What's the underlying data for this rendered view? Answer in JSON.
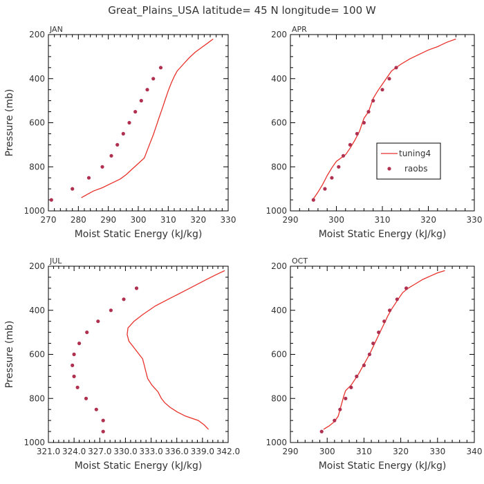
{
  "title": "Great_Plains_USA  latitude= 45 N longitude= 100 W",
  "legend": {
    "entries": [
      "tuning4",
      "raobs"
    ]
  },
  "colors": {
    "model": "#e8302a",
    "obs": "#b03050"
  },
  "chart_data": [
    {
      "type": "line",
      "title": "JAN",
      "xlabel": "Moist Static Energy (kJ/kg)",
      "ylabel": "Pressure (mb)",
      "xlim": [
        270,
        330
      ],
      "ylim": [
        1000,
        200
      ],
      "xticks": [
        270,
        280,
        290,
        300,
        310,
        320,
        330
      ],
      "xtick_labels": [
        "270",
        "280",
        "290",
        "300",
        "310",
        "320",
        "330"
      ],
      "yticks": [
        200,
        400,
        600,
        800,
        1000
      ],
      "ytick_labels": [
        "200",
        "400",
        "600",
        "800",
        "1000"
      ],
      "show_ylabel": true,
      "series": [
        {
          "name": "tuning4",
          "kind": "line",
          "points": [
            [
              281,
              940
            ],
            [
              283,
              925
            ],
            [
              285,
              910
            ],
            [
              288,
              895
            ],
            [
              291,
              875
            ],
            [
              294,
              855
            ],
            [
              296,
              835
            ],
            [
              298,
              810
            ],
            [
              300,
              785
            ],
            [
              302,
              760
            ],
            [
              303,
              725
            ],
            [
              304,
              690
            ],
            [
              305,
              655
            ],
            [
              306,
              615
            ],
            [
              307,
              575
            ],
            [
              308,
              535
            ],
            [
              309,
              495
            ],
            [
              310,
              455
            ],
            [
              311,
              420
            ],
            [
              312,
              390
            ],
            [
              313,
              365
            ],
            [
              315,
              335
            ],
            [
              317,
              305
            ],
            [
              319,
              280
            ],
            [
              321,
              260
            ],
            [
              323,
              240
            ],
            [
              325,
              220
            ]
          ]
        },
        {
          "name": "raobs",
          "kind": "points",
          "points": [
            [
              271,
              950
            ],
            [
              278,
              900
            ],
            [
              283.5,
              850
            ],
            [
              288,
              800
            ],
            [
              291,
              750
            ],
            [
              293,
              700
            ],
            [
              295,
              650
            ],
            [
              297,
              600
            ],
            [
              299,
              550
            ],
            [
              301,
              500
            ],
            [
              303,
              450
            ],
            [
              305,
              400
            ],
            [
              307.5,
              350
            ]
          ]
        }
      ]
    },
    {
      "type": "line",
      "title": "APR",
      "xlabel": "Moist Static Energy (kJ/kg)",
      "ylabel": "",
      "xlim": [
        290,
        330
      ],
      "ylim": [
        1000,
        200
      ],
      "xticks": [
        290,
        300,
        310,
        320,
        330
      ],
      "xtick_labels": [
        "290",
        "300",
        "310",
        "320",
        "330"
      ],
      "yticks": [
        200,
        400,
        600,
        800,
        1000
      ],
      "ytick_labels": [
        "200",
        "400",
        "600",
        "800",
        "1000"
      ],
      "show_ylabel": false,
      "legend_position": "right",
      "series": [
        {
          "name": "tuning4",
          "kind": "line",
          "points": [
            [
              295,
              945
            ],
            [
              296,
              915
            ],
            [
              297,
              880
            ],
            [
              298,
              840
            ],
            [
              299,
              805
            ],
            [
              300,
              775
            ],
            [
              302,
              745
            ],
            [
              303,
              715
            ],
            [
              304,
              680
            ],
            [
              305,
              640
            ],
            [
              305.5,
              610
            ],
            [
              306,
              580
            ],
            [
              307,
              550
            ],
            [
              307.5,
              520
            ],
            [
              308,
              490
            ],
            [
              309,
              455
            ],
            [
              310,
              425
            ],
            [
              311,
              395
            ],
            [
              312,
              365
            ],
            [
              314,
              335
            ],
            [
              316,
              310
            ],
            [
              318,
              290
            ],
            [
              320,
              270
            ],
            [
              322,
              255
            ],
            [
              324,
              235
            ],
            [
              326,
              220
            ]
          ]
        },
        {
          "name": "raobs",
          "kind": "points",
          "points": [
            [
              295,
              950
            ],
            [
              297.5,
              900
            ],
            [
              299,
              850
            ],
            [
              300.5,
              800
            ],
            [
              301.5,
              750
            ],
            [
              303,
              700
            ],
            [
              304.5,
              650
            ],
            [
              306,
              600
            ],
            [
              307,
              550
            ],
            [
              308,
              500
            ],
            [
              310,
              450
            ],
            [
              311.5,
              400
            ],
            [
              313,
              350
            ]
          ]
        }
      ]
    },
    {
      "type": "line",
      "title": "JUL",
      "xlabel": "Moist Static Energy (kJ/kg)",
      "ylabel": "Pressure (mb)",
      "xlim": [
        321.0,
        342.0
      ],
      "ylim": [
        1000,
        200
      ],
      "xticks": [
        321.0,
        324.0,
        327.0,
        330.0,
        333.0,
        336.0,
        339.0,
        342.0
      ],
      "xtick_labels": [
        "321.0",
        "324.0",
        "327.0",
        "330.0",
        "333.0",
        "336.0",
        "339.0",
        "342.0"
      ],
      "yticks": [
        200,
        400,
        600,
        800,
        1000
      ],
      "ytick_labels": [
        "200",
        "400",
        "600",
        "800",
        "1000"
      ],
      "show_ylabel": true,
      "series": [
        {
          "name": "tuning4",
          "kind": "line",
          "points": [
            [
              339.7,
              940
            ],
            [
              339.2,
              920
            ],
            [
              338.5,
              900
            ],
            [
              337.0,
              880
            ],
            [
              336.0,
              860
            ],
            [
              335.2,
              840
            ],
            [
              334.6,
              820
            ],
            [
              334.2,
              800
            ],
            [
              333.8,
              770
            ],
            [
              333.1,
              740
            ],
            [
              332.6,
              710
            ],
            [
              332.4,
              680
            ],
            [
              332.2,
              650
            ],
            [
              332.0,
              620
            ],
            [
              331.6,
              600
            ],
            [
              331.0,
              570
            ],
            [
              330.4,
              540
            ],
            [
              330.2,
              510
            ],
            [
              330.3,
              480
            ],
            [
              331.0,
              450
            ],
            [
              332.0,
              420
            ],
            [
              333.5,
              380
            ],
            [
              335.0,
              350
            ],
            [
              336.5,
              320
            ],
            [
              338.0,
              290
            ],
            [
              339.5,
              260
            ],
            [
              340.5,
              240
            ],
            [
              341.6,
              220
            ]
          ]
        },
        {
          "name": "raobs",
          "kind": "points",
          "points": [
            [
              327.4,
              950
            ],
            [
              327.4,
              900
            ],
            [
              326.6,
              850
            ],
            [
              325.4,
              800
            ],
            [
              324.4,
              750
            ],
            [
              324.0,
              700
            ],
            [
              323.8,
              650
            ],
            [
              324.0,
              600
            ],
            [
              324.6,
              550
            ],
            [
              325.5,
              500
            ],
            [
              326.8,
              450
            ],
            [
              328.3,
              400
            ],
            [
              329.8,
              350
            ],
            [
              331.3,
              300
            ]
          ]
        }
      ]
    },
    {
      "type": "line",
      "title": "OCT",
      "xlabel": "Moist Static Energy (kJ/kg)",
      "ylabel": "",
      "xlim": [
        290,
        340
      ],
      "ylim": [
        1000,
        200
      ],
      "xticks": [
        290,
        300,
        310,
        320,
        330,
        340
      ],
      "xtick_labels": [
        "290",
        "300",
        "310",
        "320",
        "330",
        "340"
      ],
      "yticks": [
        200,
        400,
        600,
        800,
        1000
      ],
      "ytick_labels": [
        "200",
        "400",
        "600",
        "800",
        "1000"
      ],
      "show_ylabel": false,
      "series": [
        {
          "name": "tuning4",
          "kind": "line",
          "points": [
            [
              299,
              940
            ],
            [
              300.5,
              925
            ],
            [
              302,
              905
            ],
            [
              303,
              880
            ],
            [
              303.5,
              850
            ],
            [
              304,
              820
            ],
            [
              304.5,
              790
            ],
            [
              305,
              765
            ],
            [
              306.5,
              740
            ],
            [
              307.5,
              715
            ],
            [
              308.5,
              690
            ],
            [
              309.5,
              660
            ],
            [
              310.5,
              630
            ],
            [
              311.5,
              600
            ],
            [
              312.5,
              565
            ],
            [
              313.5,
              530
            ],
            [
              314.5,
              495
            ],
            [
              315.5,
              460
            ],
            [
              316.5,
              425
            ],
            [
              317.5,
              395
            ],
            [
              318.5,
              370
            ],
            [
              319.5,
              345
            ],
            [
              320.5,
              320
            ],
            [
              322,
              300
            ],
            [
              324,
              280
            ],
            [
              326,
              260
            ],
            [
              328,
              245
            ],
            [
              330,
              230
            ],
            [
              332,
              220
            ]
          ]
        },
        {
          "name": "raobs",
          "kind": "points",
          "points": [
            [
              298.5,
              950
            ],
            [
              302,
              900
            ],
            [
              303.5,
              850
            ],
            [
              305,
              800
            ],
            [
              306.5,
              750
            ],
            [
              308,
              700
            ],
            [
              310,
              650
            ],
            [
              311.5,
              600
            ],
            [
              312.5,
              550
            ],
            [
              314,
              500
            ],
            [
              315.5,
              450
            ],
            [
              317,
              400
            ],
            [
              319,
              350
            ],
            [
              321.5,
              300
            ]
          ]
        }
      ]
    }
  ]
}
